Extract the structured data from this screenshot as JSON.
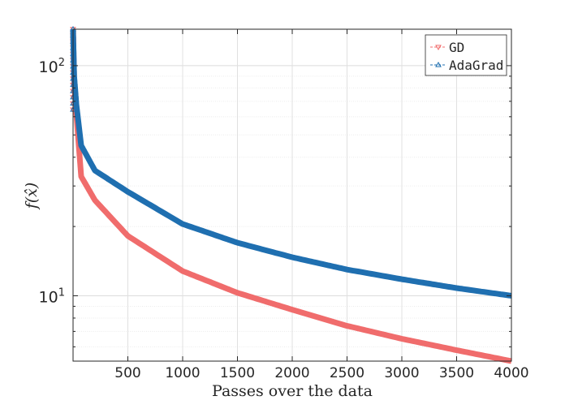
{
  "chart_data": {
    "type": "line",
    "title": "",
    "xlabel": "Passes over the data",
    "ylabel": "f(x̂)",
    "xlim": [
      0,
      4000
    ],
    "ylim": [
      5.2,
      144
    ],
    "yscale": "log",
    "grid": true,
    "legend_position": "top-right",
    "x_ticks": [
      500,
      1000,
      1500,
      2000,
      2500,
      3000,
      3500,
      4000
    ],
    "x_tick_labels": [
      "500",
      "1000",
      "1500",
      "2000",
      "2500",
      "3000",
      "3500",
      "4000"
    ],
    "y_ticks": [
      10,
      100
    ],
    "y_tick_labels": [
      {
        "base": "10",
        "exp": "1"
      },
      {
        "base": "10",
        "exp": "2"
      }
    ],
    "series": [
      {
        "name": "GD",
        "color": "#f06c6c",
        "marker": "triangle-down",
        "x": [
          0,
          10,
          30,
          74,
          200,
          500,
          1000,
          1500,
          2000,
          2500,
          3000,
          3500,
          4000
        ],
        "y": [
          144,
          85,
          62,
          33,
          26,
          18.2,
          12.8,
          10.3,
          8.7,
          7.4,
          6.5,
          5.8,
          5.2
        ]
      },
      {
        "name": "AdaGrad",
        "color": "#1f6fb0",
        "marker": "triangle-up",
        "x": [
          0,
          10,
          30,
          74,
          200,
          500,
          1000,
          1500,
          2000,
          2500,
          3000,
          3500,
          4000
        ],
        "y": [
          144,
          90,
          68,
          45,
          35,
          28.3,
          20.5,
          17.0,
          14.7,
          13.0,
          11.8,
          10.8,
          10.0
        ]
      }
    ]
  }
}
